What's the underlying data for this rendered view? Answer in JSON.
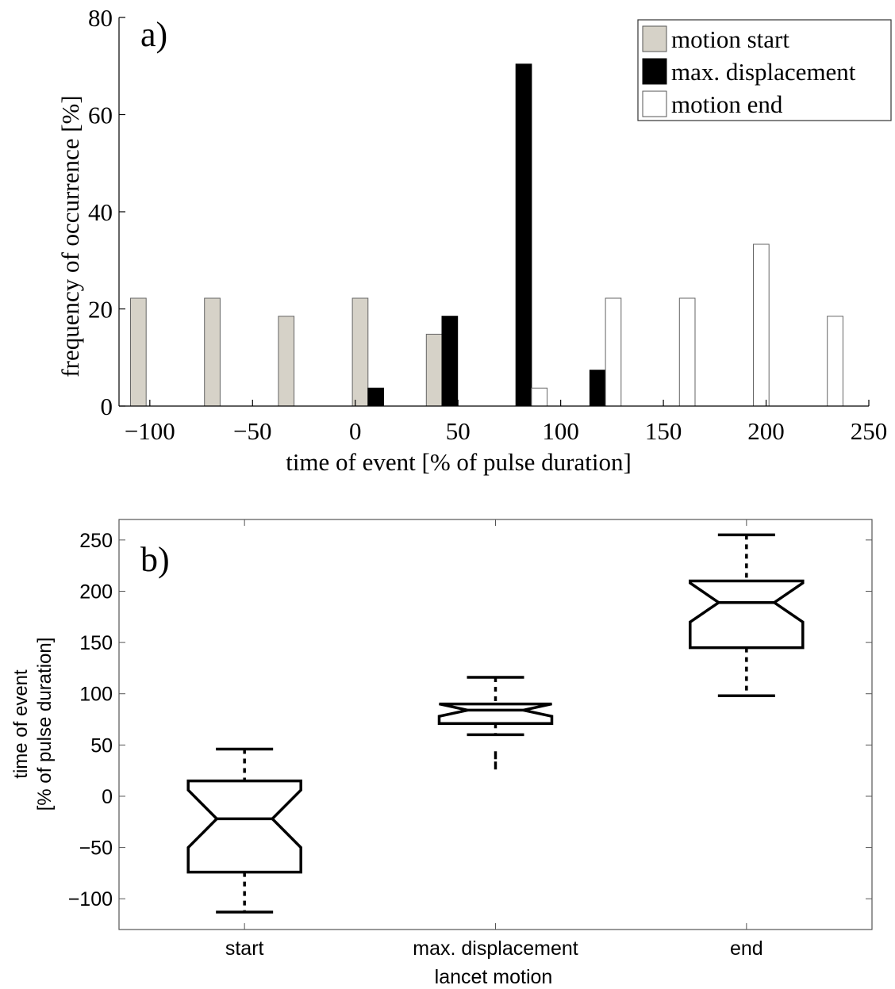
{
  "chart_data": [
    {
      "type": "bar",
      "panel_label": "a)",
      "xlabel": "time of event [% of pulse duration]",
      "ylabel": "frequency of occurrence [%]",
      "xlim": [
        -115,
        250
      ],
      "ylim": [
        0,
        80
      ],
      "xticks": [
        -100,
        -50,
        0,
        50,
        100,
        150,
        200,
        250
      ],
      "xtick_labels": [
        "−100",
        "−50",
        "0",
        "50",
        "100",
        "150",
        "200",
        "250"
      ],
      "yticks": [
        0,
        20,
        40,
        60,
        80
      ],
      "ytick_labels": [
        "0",
        "20",
        "40",
        "60",
        "80"
      ],
      "grid": false,
      "legend_position": "top-right",
      "bin_centers": [
        -98,
        -62,
        -26,
        10,
        46,
        82,
        118,
        154,
        190,
        226
      ],
      "series": [
        {
          "name": "motion start",
          "color": "#d6d2c8",
          "values": [
            22.2,
            22.2,
            18.5,
            22.2,
            14.8,
            0,
            0,
            0,
            0,
            0
          ]
        },
        {
          "name": "max. displacement",
          "color": "#000000",
          "values": [
            0,
            0,
            0,
            3.7,
            18.5,
            70.4,
            7.4,
            0,
            0,
            0
          ]
        },
        {
          "name": "motion end",
          "color": "#ffffff",
          "values": [
            0,
            0,
            0,
            0,
            0,
            3.7,
            22.2,
            22.2,
            33.3,
            18.5
          ]
        }
      ]
    },
    {
      "type": "box",
      "panel_label": "b)",
      "xlabel": "lancet motion",
      "ylabel": [
        "time of event",
        "[% of pulse duration]"
      ],
      "ylim": [
        -130,
        270
      ],
      "yticks": [
        -100,
        -50,
        0,
        50,
        100,
        150,
        200,
        250
      ],
      "ytick_labels": [
        "−100",
        "−50",
        "0",
        "50",
        "100",
        "150",
        "200",
        "250"
      ],
      "categories": [
        "start",
        "max. displacement",
        "end"
      ],
      "grid": false,
      "boxes": [
        {
          "category": "start",
          "whisker_low": -113,
          "q1": -74,
          "median": -22,
          "q3": 15,
          "whisker_high": 46,
          "notch_low": -50,
          "notch_high": 6,
          "outliers": []
        },
        {
          "category": "max. displacement",
          "whisker_low": 60,
          "q1": 71,
          "median": 84,
          "q3": 90,
          "whisker_high": 116,
          "notch_low": 78,
          "notch_high": 90,
          "outliers": [
            30,
            40
          ]
        },
        {
          "category": "end",
          "whisker_low": 98,
          "q1": 145,
          "median": 189,
          "q3": 210,
          "whisker_high": 255,
          "notch_low": 170,
          "notch_high": 208,
          "outliers": []
        }
      ]
    }
  ]
}
